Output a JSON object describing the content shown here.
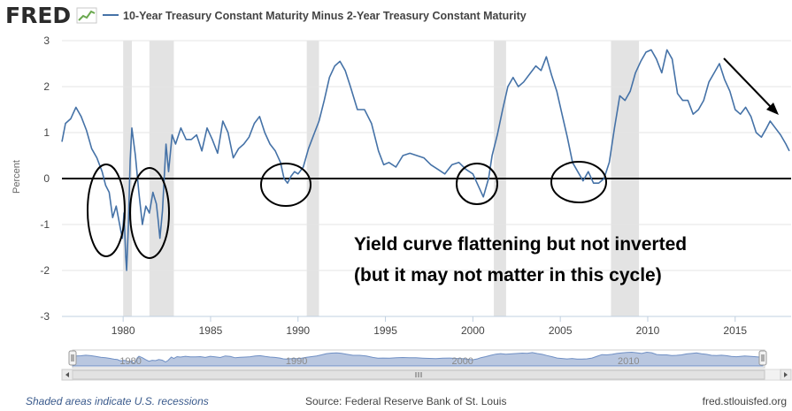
{
  "header": {
    "logo": "FRED",
    "series_title": "10-Year Treasury Constant Maturity Minus 2-Year Treasury Constant Maturity"
  },
  "colors": {
    "line": "#4572a7",
    "recession": "#e3e3e3",
    "grid": "#e6e6e6",
    "text": "#444444",
    "footer_text": "#3a5a8c",
    "annotation": "#000000",
    "navigator_fill": "#b9c7e0"
  },
  "annotation": {
    "line1": "Yield curve flattening but not inverted",
    "line2": "(but it may not matter in this cycle)"
  },
  "footer": {
    "left": "Shaded areas indicate U.S. recessions",
    "center": "Source: Federal Reserve Bank of St. Louis",
    "right": "fred.stlouisfed.org"
  },
  "navigator": {
    "labels": [
      "1980",
      "1990",
      "2000",
      "2010"
    ]
  },
  "chart_data": {
    "type": "line",
    "title": "10-Year Treasury Constant Maturity Minus 2-Year Treasury Constant Maturity",
    "xlabel": "",
    "ylabel": "Percent",
    "xlim": [
      1976.5,
      2018.2
    ],
    "ylim": [
      -3,
      3
    ],
    "x_ticks": [
      1980,
      1985,
      1990,
      1995,
      2000,
      2005,
      2010,
      2015
    ],
    "y_ticks": [
      -3,
      -2,
      -1,
      0,
      1,
      2,
      3
    ],
    "recessions": [
      [
        1980.0,
        1980.5
      ],
      [
        1981.5,
        1982.9
      ],
      [
        1990.5,
        1991.2
      ],
      [
        2001.2,
        2001.9
      ],
      [
        2007.9,
        2009.5
      ]
    ],
    "zero_line": 0,
    "series": [
      {
        "name": "10-Year Treasury Constant Maturity Minus 2-Year Treasury Constant Maturity",
        "points": [
          [
            1976.5,
            0.8
          ],
          [
            1976.7,
            1.2
          ],
          [
            1977.0,
            1.3
          ],
          [
            1977.3,
            1.55
          ],
          [
            1977.6,
            1.35
          ],
          [
            1977.9,
            1.05
          ],
          [
            1978.2,
            0.65
          ],
          [
            1978.5,
            0.45
          ],
          [
            1978.8,
            0.15
          ],
          [
            1979.0,
            -0.15
          ],
          [
            1979.2,
            -0.3
          ],
          [
            1979.4,
            -0.85
          ],
          [
            1979.6,
            -0.6
          ],
          [
            1979.8,
            -1.0
          ],
          [
            1979.95,
            -1.3
          ],
          [
            1980.05,
            -0.75
          ],
          [
            1980.15,
            -1.7
          ],
          [
            1980.2,
            -2.0
          ],
          [
            1980.3,
            -1.0
          ],
          [
            1980.4,
            0.4
          ],
          [
            1980.5,
            1.1
          ],
          [
            1980.7,
            0.5
          ],
          [
            1980.9,
            -0.3
          ],
          [
            1981.1,
            -1.0
          ],
          [
            1981.3,
            -0.6
          ],
          [
            1981.5,
            -0.75
          ],
          [
            1981.7,
            -0.3
          ],
          [
            1981.9,
            -0.55
          ],
          [
            1982.0,
            -0.9
          ],
          [
            1982.1,
            -1.3
          ],
          [
            1982.25,
            -0.7
          ],
          [
            1982.45,
            0.75
          ],
          [
            1982.6,
            0.15
          ],
          [
            1982.8,
            0.95
          ],
          [
            1983.0,
            0.75
          ],
          [
            1983.3,
            1.1
          ],
          [
            1983.6,
            0.85
          ],
          [
            1983.9,
            0.85
          ],
          [
            1984.2,
            0.95
          ],
          [
            1984.5,
            0.6
          ],
          [
            1984.8,
            1.1
          ],
          [
            1985.1,
            0.85
          ],
          [
            1985.4,
            0.55
          ],
          [
            1985.7,
            1.25
          ],
          [
            1986.0,
            1.0
          ],
          [
            1986.3,
            0.45
          ],
          [
            1986.6,
            0.65
          ],
          [
            1986.9,
            0.75
          ],
          [
            1987.2,
            0.9
          ],
          [
            1987.5,
            1.2
          ],
          [
            1987.8,
            1.35
          ],
          [
            1988.1,
            1.0
          ],
          [
            1988.4,
            0.75
          ],
          [
            1988.7,
            0.6
          ],
          [
            1989.0,
            0.35
          ],
          [
            1989.2,
            0.0
          ],
          [
            1989.4,
            -0.1
          ],
          [
            1989.6,
            0.05
          ],
          [
            1989.8,
            0.15
          ],
          [
            1990.0,
            0.1
          ],
          [
            1990.3,
            0.25
          ],
          [
            1990.6,
            0.65
          ],
          [
            1990.9,
            0.95
          ],
          [
            1991.2,
            1.25
          ],
          [
            1991.5,
            1.7
          ],
          [
            1991.8,
            2.2
          ],
          [
            1992.1,
            2.45
          ],
          [
            1992.4,
            2.55
          ],
          [
            1992.7,
            2.35
          ],
          [
            1993.0,
            2.0
          ],
          [
            1993.4,
            1.5
          ],
          [
            1993.8,
            1.5
          ],
          [
            1994.2,
            1.2
          ],
          [
            1994.6,
            0.6
          ],
          [
            1994.9,
            0.3
          ],
          [
            1995.2,
            0.35
          ],
          [
            1995.6,
            0.25
          ],
          [
            1996.0,
            0.5
          ],
          [
            1996.4,
            0.55
          ],
          [
            1996.8,
            0.5
          ],
          [
            1997.2,
            0.45
          ],
          [
            1997.6,
            0.3
          ],
          [
            1998.0,
            0.2
          ],
          [
            1998.4,
            0.1
          ],
          [
            1998.8,
            0.3
          ],
          [
            1999.2,
            0.35
          ],
          [
            1999.6,
            0.2
          ],
          [
            2000.0,
            0.1
          ],
          [
            2000.3,
            -0.15
          ],
          [
            2000.6,
            -0.4
          ],
          [
            2000.9,
            0.0
          ],
          [
            2001.1,
            0.5
          ],
          [
            2001.4,
            0.95
          ],
          [
            2001.7,
            1.5
          ],
          [
            2002.0,
            2.0
          ],
          [
            2002.3,
            2.2
          ],
          [
            2002.6,
            2.0
          ],
          [
            2002.9,
            2.1
          ],
          [
            2003.3,
            2.3
          ],
          [
            2003.6,
            2.45
          ],
          [
            2003.9,
            2.35
          ],
          [
            2004.2,
            2.65
          ],
          [
            2004.5,
            2.25
          ],
          [
            2004.8,
            1.9
          ],
          [
            2005.1,
            1.4
          ],
          [
            2005.4,
            0.9
          ],
          [
            2005.7,
            0.35
          ],
          [
            2006.0,
            0.15
          ],
          [
            2006.3,
            -0.05
          ],
          [
            2006.6,
            0.15
          ],
          [
            2006.9,
            -0.1
          ],
          [
            2007.2,
            -0.1
          ],
          [
            2007.5,
            0.0
          ],
          [
            2007.8,
            0.35
          ],
          [
            2008.1,
            1.1
          ],
          [
            2008.4,
            1.8
          ],
          [
            2008.7,
            1.7
          ],
          [
            2009.0,
            1.9
          ],
          [
            2009.3,
            2.3
          ],
          [
            2009.6,
            2.55
          ],
          [
            2009.9,
            2.75
          ],
          [
            2010.2,
            2.8
          ],
          [
            2010.5,
            2.6
          ],
          [
            2010.8,
            2.3
          ],
          [
            2011.1,
            2.8
          ],
          [
            2011.4,
            2.6
          ],
          [
            2011.7,
            1.85
          ],
          [
            2012.0,
            1.7
          ],
          [
            2012.3,
            1.7
          ],
          [
            2012.6,
            1.4
          ],
          [
            2012.9,
            1.5
          ],
          [
            2013.2,
            1.7
          ],
          [
            2013.5,
            2.1
          ],
          [
            2013.8,
            2.3
          ],
          [
            2014.1,
            2.5
          ],
          [
            2014.4,
            2.15
          ],
          [
            2014.7,
            1.9
          ],
          [
            2015.0,
            1.5
          ],
          [
            2015.3,
            1.4
          ],
          [
            2015.6,
            1.55
          ],
          [
            2015.9,
            1.35
          ],
          [
            2016.2,
            1.0
          ],
          [
            2016.5,
            0.9
          ],
          [
            2016.8,
            1.1
          ],
          [
            2017.0,
            1.25
          ],
          [
            2017.3,
            1.1
          ],
          [
            2017.6,
            0.95
          ],
          [
            2017.9,
            0.75
          ],
          [
            2018.1,
            0.6
          ]
        ]
      }
    ]
  }
}
